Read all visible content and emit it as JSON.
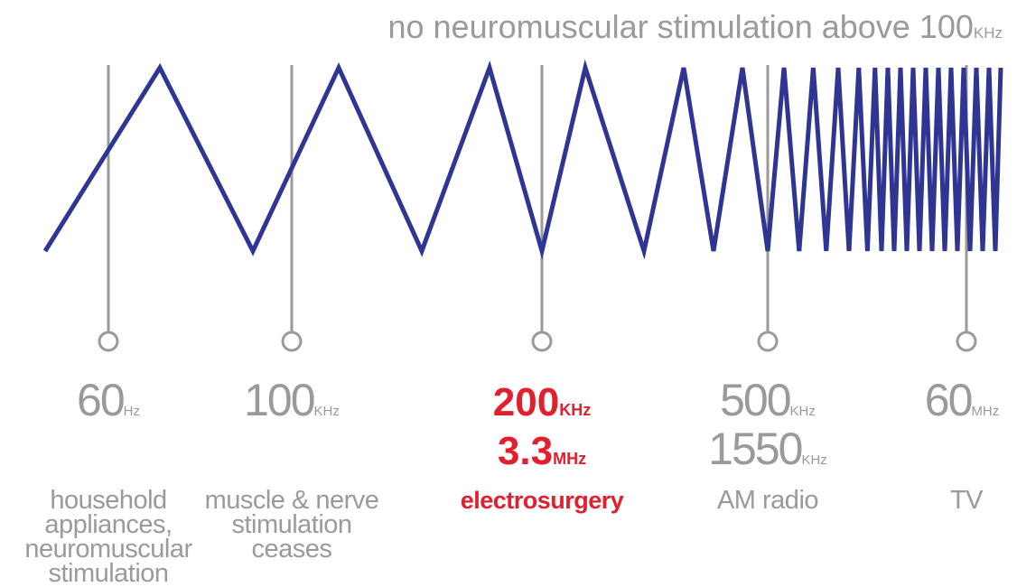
{
  "header": {
    "text": "no neuromuscular stimulation above 100",
    "unit": "KHz"
  },
  "markers": [
    {
      "values": [
        {
          "number": "60",
          "unit": "Hz"
        }
      ],
      "description": [
        "household",
        "appliances,",
        "neuromuscular",
        "stimulation"
      ]
    },
    {
      "values": [
        {
          "number": "100",
          "unit": "KHz"
        }
      ],
      "description": [
        "muscle & nerve",
        "stimulation",
        "ceases"
      ]
    },
    {
      "values": [
        {
          "number": "200",
          "unit": "KHz"
        },
        {
          "number": "3.3",
          "unit": "MHz"
        }
      ],
      "description": [
        "electrosurgery"
      ]
    },
    {
      "values": [
        {
          "number": "500",
          "unit": "KHz"
        },
        {
          "number": "1550",
          "unit": "KHz"
        }
      ],
      "description": [
        "AM radio"
      ]
    },
    {
      "values": [
        {
          "number": "60",
          "unit": "MHz"
        }
      ],
      "description": [
        "TV"
      ]
    }
  ]
}
